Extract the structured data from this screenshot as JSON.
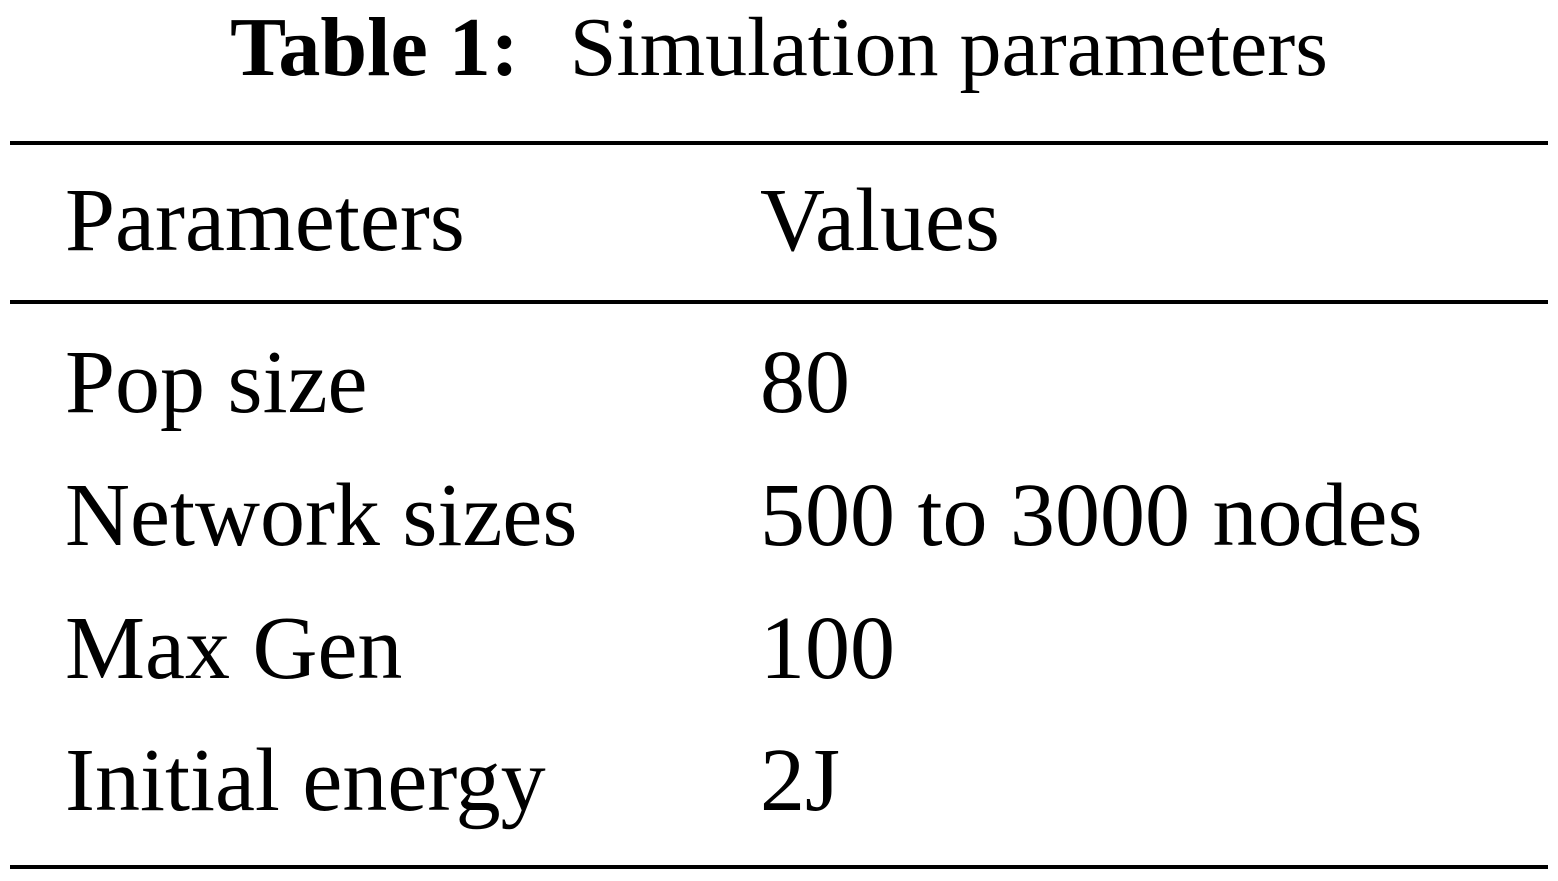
{
  "caption": {
    "label": "Table 1:",
    "title": "Simulation parameters"
  },
  "table": {
    "header": [
      "Parameters",
      "Values"
    ],
    "rows": [
      [
        "Pop size",
        "80"
      ],
      [
        "Network sizes",
        "500 to 3000 nodes"
      ],
      [
        "Max Gen",
        "100"
      ],
      [
        "Initial energy",
        "2J"
      ]
    ]
  }
}
